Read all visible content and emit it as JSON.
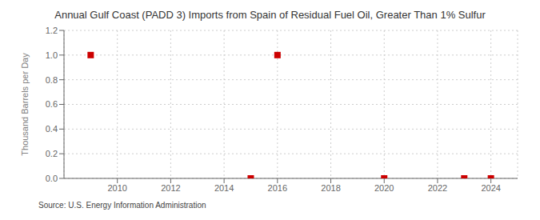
{
  "chart_data": {
    "type": "scatter",
    "title": "Annual Gulf Coast (PADD 3) Imports from Spain of Residual Fuel Oil, Greater Than 1% Sulfur",
    "y_label": "Thousand Barrels per Day",
    "annotations": [
      "Source: U.S. Energy Information Administration"
    ],
    "x": [
      2009,
      2015,
      2016,
      2020,
      2023,
      2024
    ],
    "values": [
      1.0,
      0.0,
      1.0,
      0.0,
      0.0,
      0.0
    ],
    "color": "#cc0000",
    "marker": "square",
    "xlim": [
      2008.0,
      2025.0
    ],
    "xticks": [
      2010,
      2012,
      2014,
      2016,
      2018,
      2020,
      2022,
      2024
    ],
    "ylim": [
      0.0,
      1.2
    ],
    "yticks": [
      {
        "value": 0.0,
        "label": "0.0"
      },
      0.2,
      0.4,
      0.6,
      0.8,
      {
        "value": 1.0,
        "label": "1.0"
      },
      1.2
    ],
    "grid": true
  }
}
